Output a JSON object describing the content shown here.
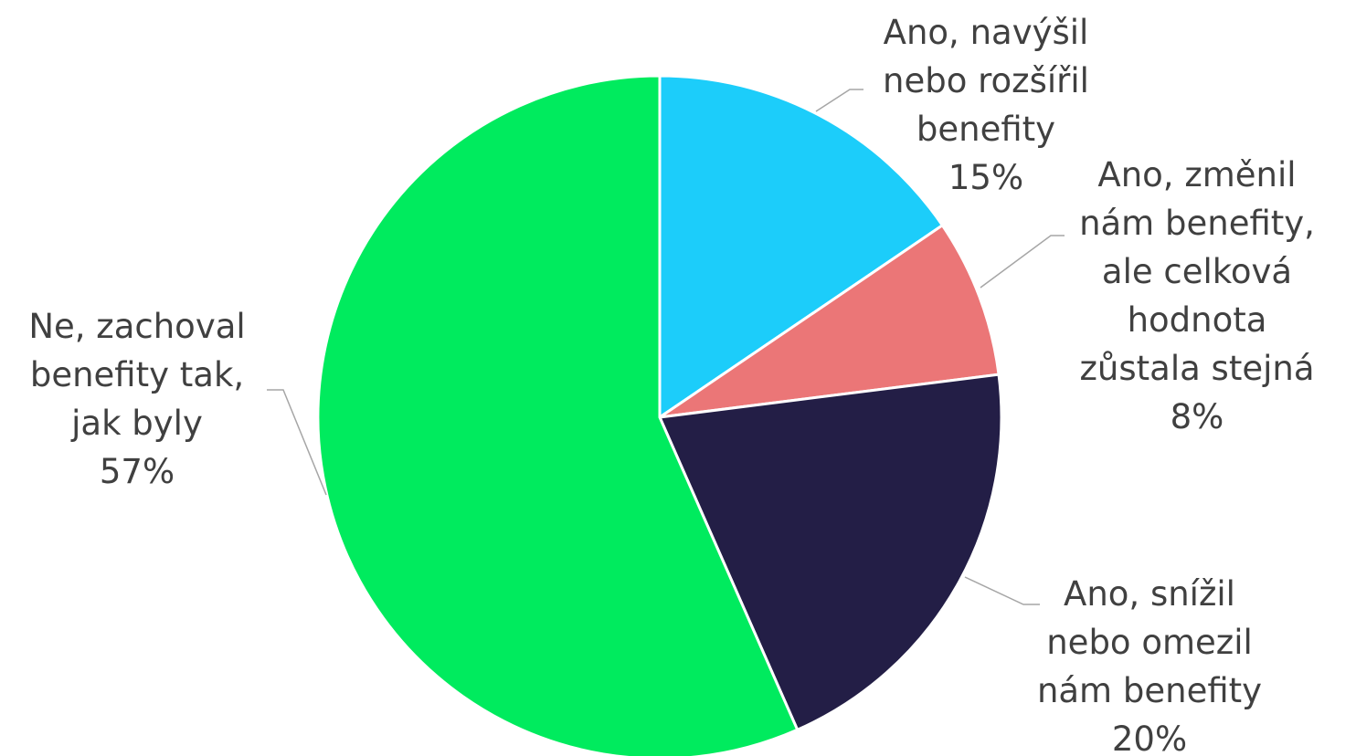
{
  "chart_data": {
    "type": "pie",
    "start_angle_deg": 0,
    "direction": "clockwise",
    "slices": [
      {
        "lines": [
          "Ano, navýšil",
          "nebo rozšířil",
          "benefity"
        ],
        "percent_label": "15%",
        "value": 15.5,
        "color": "#1ccdfa"
      },
      {
        "lines": [
          "Ano, změnil",
          "nám benefity,",
          "ale celková",
          "hodnota",
          "zůstala stejná"
        ],
        "percent_label": "8%",
        "value": 7.5,
        "color": "#eb7677"
      },
      {
        "lines": [
          "Ano, snížil",
          "nebo omezil",
          "nám benefity"
        ],
        "percent_label": "20%",
        "value": 20.4,
        "color": "#231e46"
      },
      {
        "lines": [
          "Ne, zachoval",
          "benefity tak,",
          "jak byly"
        ],
        "percent_label": "57%",
        "value": 56.6,
        "color": "#00eb5e"
      }
    ]
  }
}
